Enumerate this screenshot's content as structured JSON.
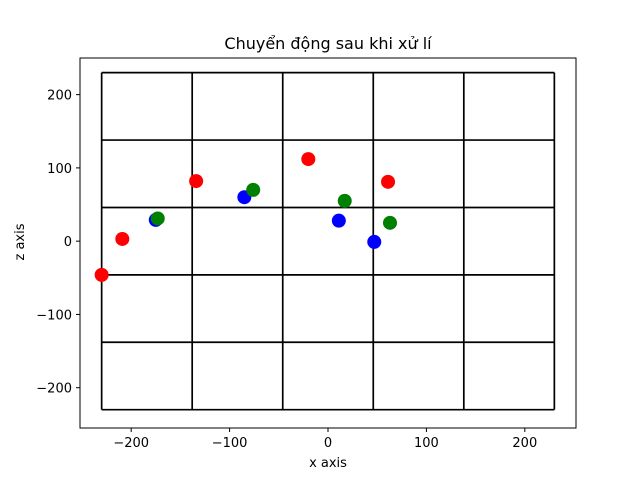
{
  "chart_data": {
    "type": "scatter",
    "title": "Chuyển động sau khi xử lí",
    "xlabel": "x axis",
    "ylabel": "z axis",
    "xlim": [
      -252,
      252
    ],
    "ylim": [
      -255,
      250
    ],
    "xticks": [
      -200,
      -100,
      0,
      100,
      200
    ],
    "yticks": [
      -200,
      -100,
      0,
      100,
      200
    ],
    "xtick_labels": [
      "−200",
      "−100",
      "0",
      "100",
      "200"
    ],
    "ytick_labels": [
      "−200",
      "−100",
      "0",
      "100",
      "200"
    ],
    "grid_lines": {
      "x": [
        -230,
        -138,
        -46,
        46,
        138,
        230
      ],
      "y": [
        -230,
        -138,
        -46,
        46,
        138,
        230
      ]
    },
    "series": [
      {
        "color": "#ff0000",
        "points": [
          {
            "x": -230,
            "y": -46
          },
          {
            "x": -209,
            "y": 3
          },
          {
            "x": -134,
            "y": 82
          },
          {
            "x": -20,
            "y": 112
          },
          {
            "x": 61,
            "y": 81
          }
        ]
      },
      {
        "color": "#0000ff",
        "points": [
          {
            "x": -175,
            "y": 29
          },
          {
            "x": -85,
            "y": 60
          },
          {
            "x": 11,
            "y": 28
          },
          {
            "x": 47,
            "y": -1
          }
        ]
      },
      {
        "color": "#008000",
        "points": [
          {
            "x": -173,
            "y": 31
          },
          {
            "x": -76,
            "y": 70
          },
          {
            "x": 17,
            "y": 55
          },
          {
            "x": 63,
            "y": 25
          }
        ]
      }
    ]
  }
}
